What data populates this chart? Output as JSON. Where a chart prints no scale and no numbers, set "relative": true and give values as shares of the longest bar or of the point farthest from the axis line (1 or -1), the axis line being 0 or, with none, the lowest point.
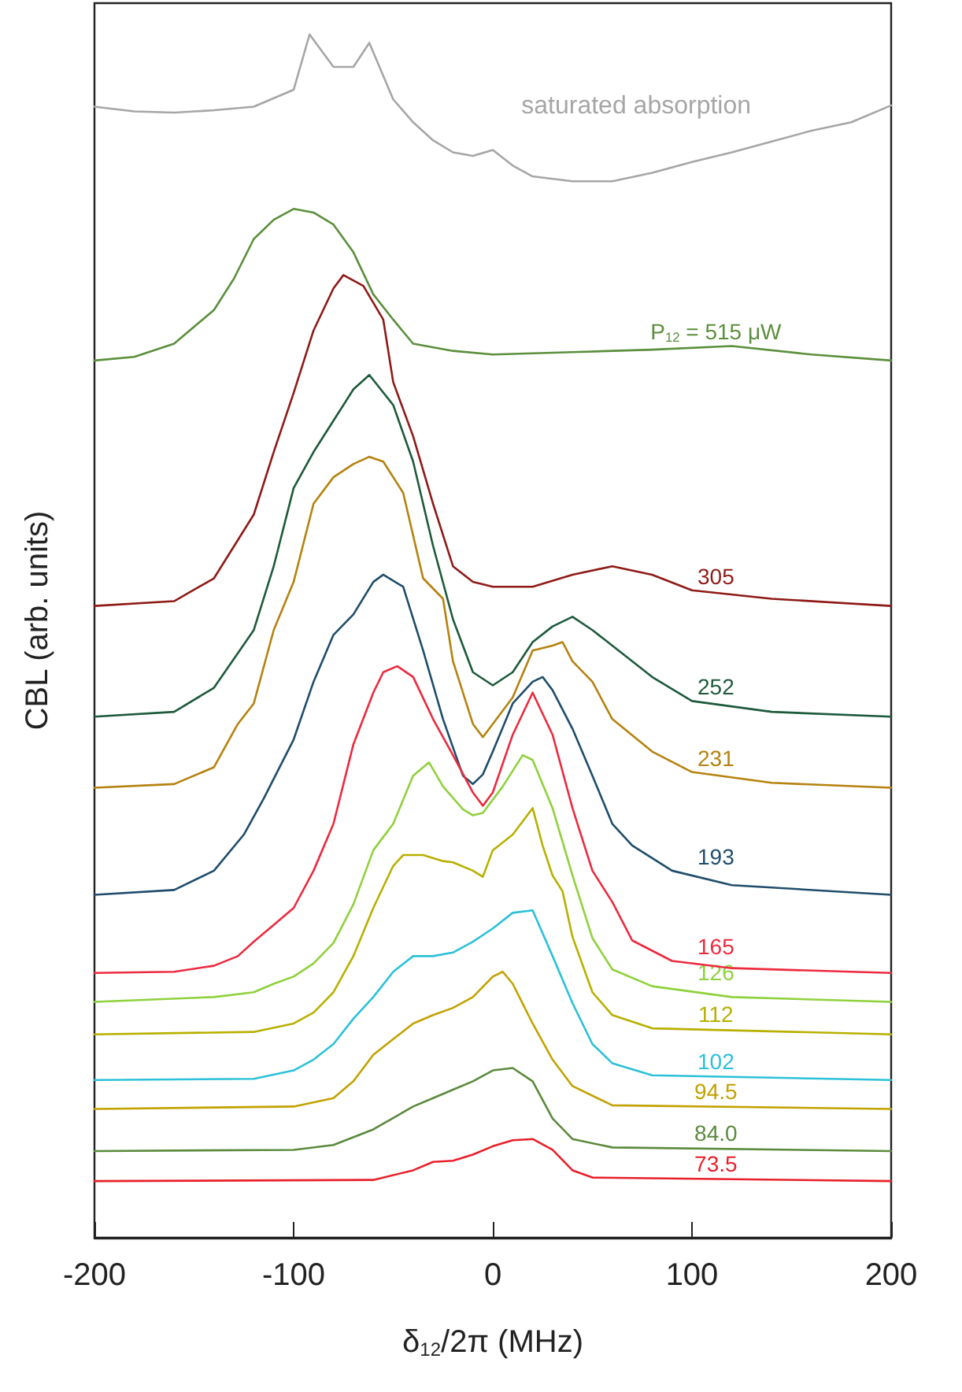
{
  "chart_data": {
    "type": "line",
    "relative": true,
    "xlabel": "δ$_{12}$/2π (MHz)",
    "ylabel": "CBL (arb. units)",
    "xlim": [
      -200,
      200
    ],
    "xticks": [
      -200,
      -100,
      0,
      100,
      200
    ],
    "grid": false,
    "legend": false,
    "marker": "none",
    "line_style": "solid",
    "series": [
      {
        "name": "saturated absorption",
        "color": "#a6a6a6",
        "x": [
          -200,
          -180,
          -160,
          -140,
          -120,
          -100,
          -92,
          -80,
          -70,
          -62,
          -50,
          -40,
          -30,
          -20,
          -10,
          0,
          10,
          20,
          40,
          60,
          80,
          100,
          120,
          140,
          160,
          180,
          200
        ],
        "values": [
          0.94,
          0.936,
          0.935,
          0.937,
          0.94,
          0.954,
          1.0,
          0.973,
          0.973,
          0.993,
          0.946,
          0.927,
          0.912,
          0.902,
          0.899,
          0.904,
          0.891,
          0.882,
          0.878,
          0.878,
          0.885,
          0.894,
          0.902,
          0.911,
          0.92,
          0.927,
          0.941
        ]
      },
      {
        "name": "P$_{12}$ = 515 μW",
        "color": "#5b8f3c",
        "x": [
          -200,
          -180,
          -160,
          -140,
          -130,
          -120,
          -110,
          -100,
          -90,
          -80,
          -70,
          -60,
          -50,
          -40,
          -20,
          0,
          40,
          80,
          120,
          160,
          200
        ],
        "values": [
          0.729,
          0.732,
          0.743,
          0.771,
          0.797,
          0.83,
          0.846,
          0.855,
          0.852,
          0.842,
          0.819,
          0.784,
          0.763,
          0.743,
          0.737,
          0.734,
          0.736,
          0.738,
          0.741,
          0.734,
          0.729
        ]
      },
      {
        "name": "305",
        "color": "#8e1a16",
        "x": [
          -200,
          -160,
          -140,
          -120,
          -110,
          -100,
          -90,
          -80,
          -75,
          -65,
          -55,
          -50,
          -40,
          -30,
          -20,
          -10,
          0,
          20,
          40,
          60,
          80,
          100,
          140,
          200
        ],
        "values": [
          0.525,
          0.529,
          0.548,
          0.601,
          0.653,
          0.702,
          0.754,
          0.789,
          0.8,
          0.791,
          0.763,
          0.711,
          0.666,
          0.61,
          0.558,
          0.545,
          0.541,
          0.541,
          0.551,
          0.558,
          0.551,
          0.538,
          0.531,
          0.525
        ]
      },
      {
        "name": "252",
        "color": "#1d5a3c",
        "x": [
          -200,
          -160,
          -140,
          -120,
          -110,
          -100,
          -90,
          -80,
          -70,
          -62,
          -50,
          -40,
          -30,
          -20,
          -10,
          0,
          10,
          20,
          30,
          40,
          50,
          60,
          80,
          100,
          140,
          200
        ],
        "values": [
          0.433,
          0.437,
          0.457,
          0.505,
          0.558,
          0.623,
          0.653,
          0.679,
          0.705,
          0.717,
          0.692,
          0.645,
          0.575,
          0.514,
          0.47,
          0.459,
          0.47,
          0.495,
          0.508,
          0.516,
          0.505,
          0.492,
          0.466,
          0.446,
          0.437,
          0.433
        ]
      },
      {
        "name": "231",
        "color": "#b5820f",
        "x": [
          -200,
          -160,
          -140,
          -128,
          -120,
          -110,
          -100,
          -90,
          -80,
          -70,
          -62,
          -55,
          -45,
          -35,
          -25,
          -20,
          -10,
          -5,
          0,
          10,
          20,
          30,
          35,
          40,
          50,
          60,
          80,
          100,
          140,
          200
        ],
        "values": [
          0.374,
          0.377,
          0.391,
          0.427,
          0.444,
          0.505,
          0.545,
          0.61,
          0.632,
          0.643,
          0.649,
          0.645,
          0.619,
          0.548,
          0.531,
          0.479,
          0.427,
          0.416,
          0.427,
          0.449,
          0.488,
          0.492,
          0.495,
          0.479,
          0.462,
          0.431,
          0.404,
          0.387,
          0.378,
          0.374
        ]
      },
      {
        "name": "193",
        "color": "#1f4d6b",
        "x": [
          -200,
          -160,
          -140,
          -125,
          -115,
          -100,
          -90,
          -80,
          -70,
          -60,
          -55,
          -45,
          -35,
          -25,
          -15,
          -10,
          -5,
          0,
          10,
          20,
          25,
          30,
          40,
          50,
          60,
          70,
          90,
          120,
          200
        ],
        "values": [
          0.285,
          0.289,
          0.305,
          0.335,
          0.365,
          0.414,
          0.462,
          0.501,
          0.518,
          0.545,
          0.551,
          0.541,
          0.488,
          0.431,
          0.384,
          0.377,
          0.385,
          0.404,
          0.444,
          0.462,
          0.466,
          0.455,
          0.423,
          0.384,
          0.344,
          0.326,
          0.305,
          0.293,
          0.285
        ]
      },
      {
        "name": "165",
        "color": "#ec2a3f",
        "x": [
          -200,
          -160,
          -140,
          -128,
          -120,
          -110,
          -100,
          -90,
          -80,
          -70,
          -60,
          -55,
          -48,
          -40,
          -30,
          -20,
          -10,
          -5,
          0,
          10,
          20,
          30,
          40,
          50,
          60,
          70,
          90,
          120,
          200
        ],
        "values": [
          0.22,
          0.221,
          0.226,
          0.234,
          0.246,
          0.26,
          0.274,
          0.305,
          0.344,
          0.41,
          0.453,
          0.47,
          0.475,
          0.466,
          0.431,
          0.401,
          0.37,
          0.359,
          0.37,
          0.418,
          0.453,
          0.418,
          0.357,
          0.305,
          0.279,
          0.247,
          0.23,
          0.224,
          0.22
        ]
      },
      {
        "name": "126",
        "color": "#8fd13c",
        "x": [
          -200,
          -140,
          -120,
          -110,
          -100,
          -90,
          -80,
          -70,
          -60,
          -50,
          -40,
          -32,
          -25,
          -15,
          -10,
          -5,
          5,
          15,
          20,
          30,
          40,
          50,
          60,
          80,
          120,
          200
        ],
        "values": [
          0.196,
          0.2,
          0.204,
          0.211,
          0.217,
          0.228,
          0.245,
          0.277,
          0.322,
          0.344,
          0.384,
          0.395,
          0.375,
          0.356,
          0.351,
          0.353,
          0.375,
          0.401,
          0.397,
          0.357,
          0.301,
          0.249,
          0.223,
          0.209,
          0.2,
          0.196
        ]
      },
      {
        "name": "112",
        "color": "#b8b000",
        "x": [
          -200,
          -120,
          -100,
          -90,
          -80,
          -70,
          -60,
          -50,
          -45,
          -40,
          -35,
          -25,
          -20,
          -10,
          -5,
          0,
          10,
          20,
          25,
          30,
          35,
          40,
          50,
          60,
          80,
          200
        ],
        "values": [
          0.169,
          0.171,
          0.178,
          0.187,
          0.204,
          0.234,
          0.274,
          0.309,
          0.318,
          0.318,
          0.318,
          0.313,
          0.312,
          0.305,
          0.3,
          0.322,
          0.335,
          0.357,
          0.326,
          0.301,
          0.288,
          0.25,
          0.204,
          0.185,
          0.174,
          0.169
        ]
      },
      {
        "name": "102",
        "color": "#2cc1d8",
        "x": [
          -200,
          -120,
          -100,
          -90,
          -80,
          -70,
          -60,
          -50,
          -40,
          -30,
          -20,
          -10,
          0,
          10,
          20,
          30,
          40,
          50,
          60,
          80,
          200
        ],
        "values": [
          0.131,
          0.132,
          0.139,
          0.148,
          0.161,
          0.182,
          0.2,
          0.221,
          0.234,
          0.234,
          0.237,
          0.246,
          0.257,
          0.27,
          0.272,
          0.234,
          0.195,
          0.161,
          0.145,
          0.135,
          0.131
        ]
      },
      {
        "name": "94.5",
        "color": "#c2a200",
        "x": [
          -200,
          -100,
          -80,
          -70,
          -60,
          -50,
          -40,
          -30,
          -20,
          -10,
          0,
          5,
          10,
          20,
          30,
          40,
          60,
          200
        ],
        "values": [
          0.107,
          0.109,
          0.116,
          0.13,
          0.152,
          0.165,
          0.178,
          0.185,
          0.191,
          0.2,
          0.217,
          0.221,
          0.211,
          0.178,
          0.148,
          0.126,
          0.11,
          0.107
        ]
      },
      {
        "name": "84.0",
        "color": "#5b8a3c",
        "x": [
          -200,
          -100,
          -80,
          -60,
          -40,
          -30,
          -20,
          -10,
          0,
          10,
          20,
          30,
          40,
          60,
          200
        ],
        "values": [
          0.072,
          0.073,
          0.077,
          0.09,
          0.109,
          0.116,
          0.123,
          0.13,
          0.139,
          0.141,
          0.13,
          0.099,
          0.082,
          0.075,
          0.072
        ]
      },
      {
        "name": "73.5",
        "color": "#e8202a",
        "x": [
          -200,
          -60,
          -40,
          -30,
          -20,
          -10,
          0,
          10,
          20,
          30,
          40,
          50,
          200
        ],
        "values": [
          0.047,
          0.048,
          0.056,
          0.063,
          0.064,
          0.069,
          0.076,
          0.081,
          0.082,
          0.073,
          0.056,
          0.05,
          0.047
        ]
      }
    ]
  }
}
